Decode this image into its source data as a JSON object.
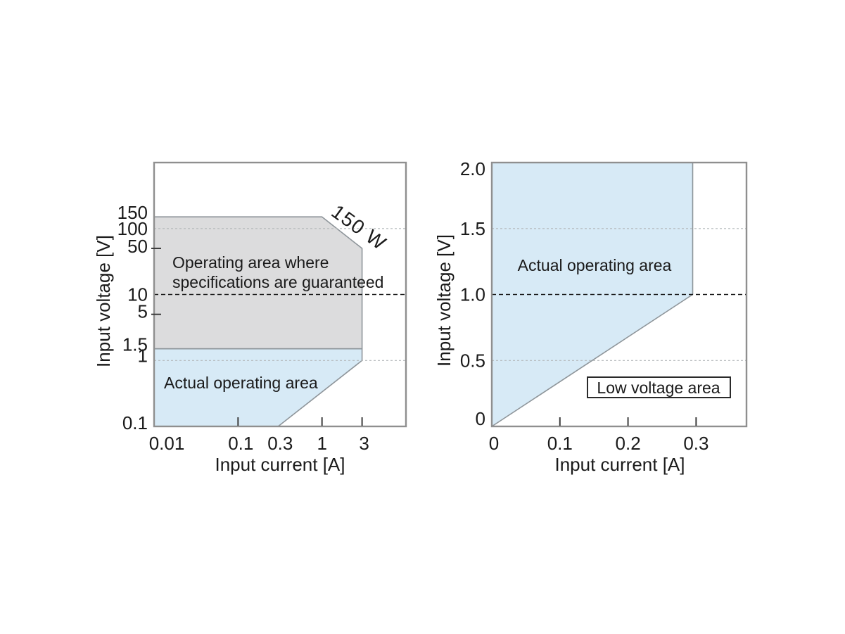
{
  "page": {
    "background": "#ffffff"
  },
  "colors": {
    "guaranteed_area_fill": "#dcdcdd",
    "actual_area_fill": "#d7eaf6",
    "area_stroke": "#8e959a",
    "plot_border": "#8f8f8f",
    "grid_light": "#b4b8ba",
    "grid_dark": "#1a1a1a",
    "tick_mark": "#3c3c3c",
    "text": "#1a1a1a",
    "label_box_stroke": "#2a2a2a",
    "label_box_fill": "#ffffff"
  },
  "chart_data": [
    {
      "type": "area",
      "name": "guaranteed-vs-actual-operating-area-chart",
      "title": "",
      "xlabel": "Input current [A]",
      "ylabel": "Input voltage [V]",
      "x_scale": "log",
      "x_range": [
        0.01,
        10
      ],
      "y_scale": "log",
      "y_range": [
        0.1,
        1000
      ],
      "grid": "horizontal-dashed-only",
      "x_ticks": [
        {
          "v": 0.01,
          "label": "0.01",
          "mark": false
        },
        {
          "v": 0.1,
          "label": "0.1",
          "mark": true
        },
        {
          "v": 0.3,
          "label": "0.3",
          "mark": false
        },
        {
          "v": 1,
          "label": "1",
          "mark": true
        },
        {
          "v": 3,
          "label": "3",
          "mark": true
        }
      ],
      "y_ticks": [
        {
          "v": 150,
          "label": "150",
          "mark": false
        },
        {
          "v": 100,
          "label": "100",
          "mark": false
        },
        {
          "v": 50,
          "label": "50",
          "mark": true
        },
        {
          "v": 10,
          "label": "10",
          "mark": false
        },
        {
          "v": 5,
          "label": "5",
          "mark": true
        },
        {
          "v": 1.5,
          "label": "1.5",
          "mark": false
        },
        {
          "v": 1,
          "label": "1",
          "mark": false
        },
        {
          "v": 0.1,
          "label": "0.1",
          "mark": false
        }
      ],
      "gridlines": [
        {
          "y": 100,
          "style": "light"
        },
        {
          "y": 10,
          "style": "dark"
        },
        {
          "y": 1,
          "style": "light"
        }
      ],
      "areas": [
        {
          "name": "guaranteed-operating-area",
          "fill": "#dcdcdd",
          "points": [
            [
              0.01,
              150
            ],
            [
              1,
              150
            ],
            [
              3,
              50
            ],
            [
              3,
              1.5
            ],
            [
              0.01,
              1.5
            ]
          ]
        },
        {
          "name": "actual-operating-area",
          "fill": "#d7eaf6",
          "points": [
            [
              0.01,
              1.5
            ],
            [
              3,
              1.5
            ],
            [
              3,
              1
            ],
            [
              0.3,
              0.1
            ],
            [
              0.01,
              0.1
            ]
          ]
        }
      ],
      "annotations": [
        {
          "id": "guaranteed-area-label",
          "lines": [
            "Operating area where",
            "specifications are guaranteed"
          ],
          "boxed": false
        },
        {
          "id": "actual-area-label",
          "lines": [
            "Actual operating area"
          ],
          "boxed": false
        },
        {
          "id": "power-limit-label",
          "lines": [
            "150 W"
          ],
          "boxed": false
        }
      ]
    },
    {
      "type": "area",
      "name": "low-voltage-area-chart",
      "title": "",
      "xlabel": "Input current [A]",
      "ylabel": "Input voltage [V]",
      "x_scale": "linear",
      "x_range": [
        0,
        0.374
      ],
      "y_scale": "linear",
      "y_range": [
        0,
        2.0
      ],
      "grid": "horizontal-dashed-only",
      "x_ticks": [
        {
          "v": 0,
          "label": "0",
          "mark": false
        },
        {
          "v": 0.1,
          "label": "0.1",
          "mark": true
        },
        {
          "v": 0.2,
          "label": "0.2",
          "mark": true
        },
        {
          "v": 0.3,
          "label": "0.3",
          "mark": true
        }
      ],
      "y_ticks": [
        {
          "v": 0,
          "label": "0",
          "mark": false
        },
        {
          "v": 0.5,
          "label": "0.5",
          "mark": false
        },
        {
          "v": 1.0,
          "label": "1.0",
          "mark": false
        },
        {
          "v": 1.5,
          "label": "1.5",
          "mark": false
        },
        {
          "v": 2.0,
          "label": "2.0",
          "mark": false
        }
      ],
      "gridlines": [
        {
          "y": 1.5,
          "style": "light"
        },
        {
          "y": 1.0,
          "style": "dark"
        },
        {
          "y": 0.5,
          "style": "light"
        }
      ],
      "areas": [
        {
          "name": "actual-operating-area",
          "fill": "#d7eaf6",
          "points": [
            [
              0,
              0
            ],
            [
              0.295,
              1.0
            ],
            [
              0.295,
              2.0
            ],
            [
              0,
              2.0
            ]
          ]
        }
      ],
      "annotations": [
        {
          "id": "actual-area-label",
          "lines": [
            "Actual operating area"
          ],
          "boxed": false
        },
        {
          "id": "low-voltage-label",
          "lines": [
            "Low voltage area"
          ],
          "boxed": true
        }
      ]
    }
  ]
}
